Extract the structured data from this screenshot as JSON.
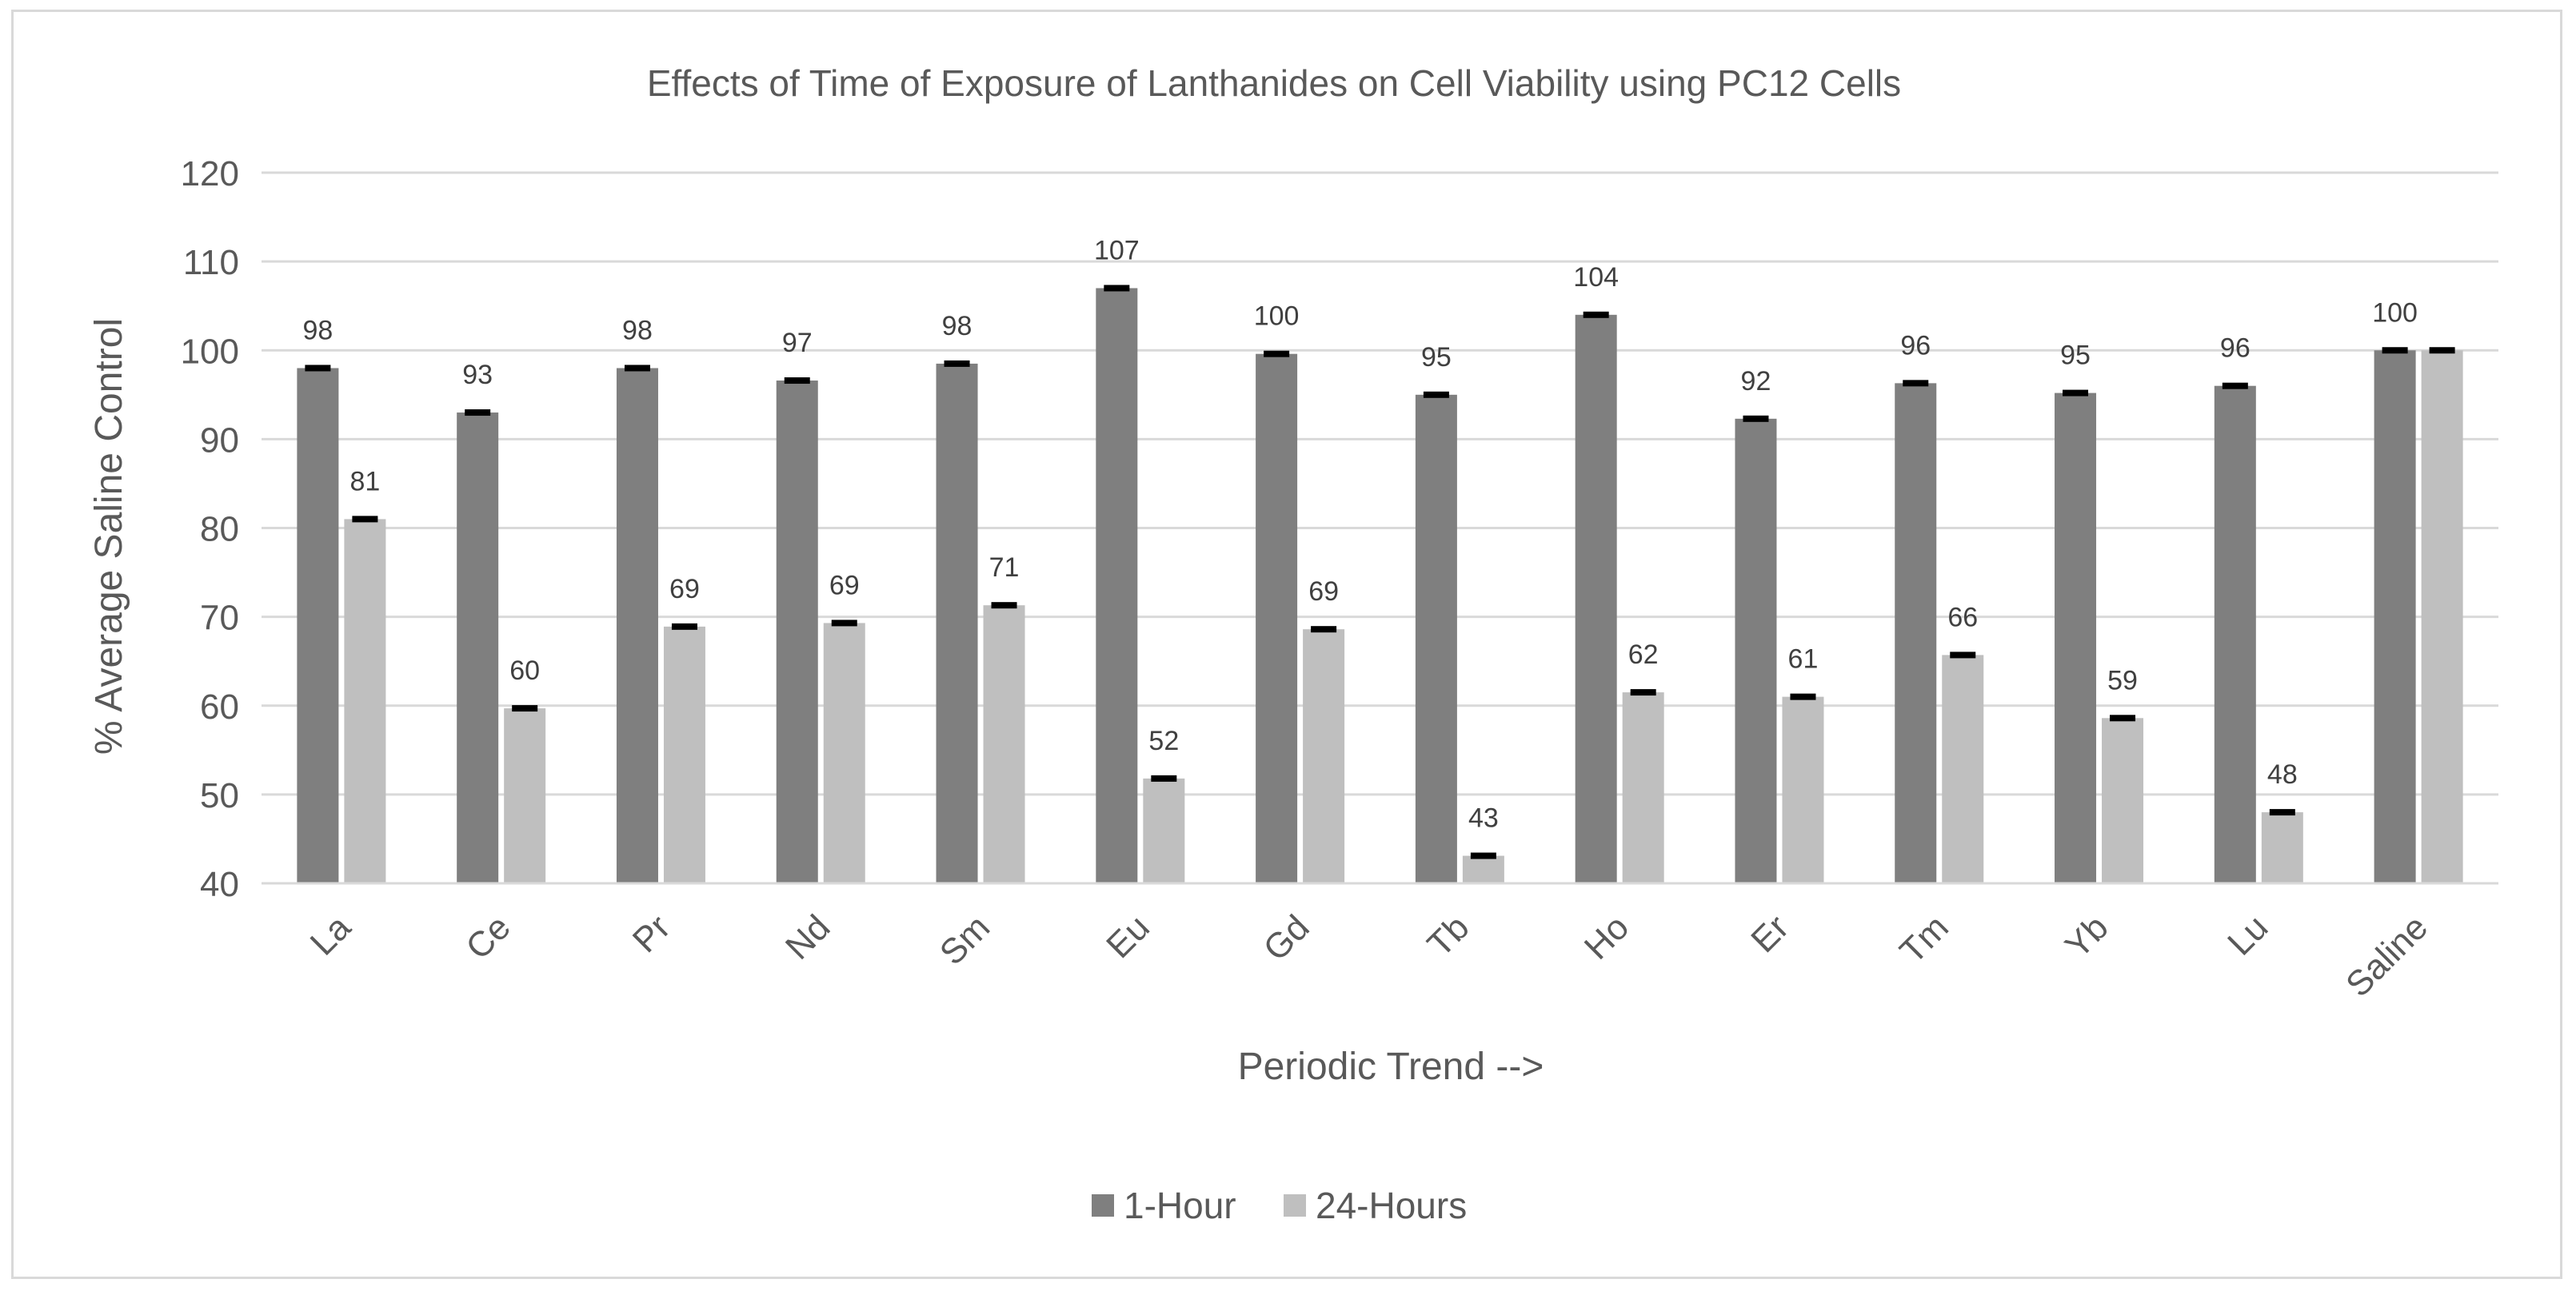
{
  "chart_data": {
    "type": "bar",
    "title": "Effects of Time of Exposure of Lanthanides on Cell Viability using PC12 Cells",
    "xlabel": "Periodic Trend -->",
    "ylabel": "% Average Saline Control",
    "ylim": [
      40,
      120
    ],
    "yticks": [
      "40",
      "50",
      "60",
      "70",
      "80",
      "90",
      "100",
      "110",
      "120"
    ],
    "grid": true,
    "legend_position": "bottom",
    "categories": [
      "La",
      "Ce",
      "Pr",
      "Nd",
      "Sm",
      "Eu",
      "Gd",
      "Tb",
      "Ho",
      "Er",
      "Tm",
      "Yb",
      "Lu",
      "Saline"
    ],
    "series": [
      {
        "name": "1-Hour",
        "color": "#7f7f7f",
        "values": [
          98,
          93,
          98,
          96.6,
          98.5,
          107,
          99.6,
          95,
          104,
          92.3,
          96.3,
          95.2,
          96,
          100
        ],
        "labels": [
          "98",
          "93",
          "98",
          "97",
          "98",
          "107",
          "100",
          "95",
          "104",
          "92",
          "96",
          "95",
          "96",
          "100"
        ]
      },
      {
        "name": "24-Hours",
        "color": "#bfbfbf",
        "values": [
          81,
          59.7,
          68.9,
          69.3,
          71.3,
          51.8,
          68.6,
          43.1,
          61.5,
          61,
          65.7,
          58.6,
          48,
          100
        ],
        "labels": [
          "81",
          "60",
          "69",
          "69",
          "71",
          "52",
          "69",
          "43",
          "62",
          "61",
          "66",
          "59",
          "48",
          ""
        ]
      }
    ],
    "errorbar_color": "#000000"
  }
}
